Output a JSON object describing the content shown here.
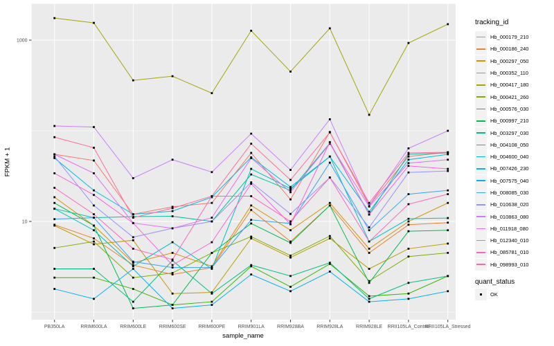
{
  "figure": {
    "background": "#FFFFFF",
    "panel_background": "#EBEBEB",
    "grid_color": "#FFFFFF",
    "tick_color": "#333333",
    "tick_label_color": "#4D4D4D",
    "text_color": "#000000",
    "point_color": "#000000",
    "legend_key_background": "#F2F2F2"
  },
  "chart_data": {
    "type": "line",
    "title": "",
    "xlabel": "sample_name",
    "ylabel": "FPKM + 1",
    "y_scale": "log10",
    "ylim": [
      0.82,
      2500
    ],
    "y_major_breaks": [
      1000,
      10
    ],
    "y_tick_labels": [
      "1000",
      "10"
    ],
    "y_minor_breaks": [
      100,
      1
    ],
    "grid": true,
    "legend_position": "right",
    "legend_title": "tracking_id",
    "legend2_title": "quant_status",
    "legend2_items": [
      "OK"
    ],
    "categories": [
      "PB350LA",
      "RRIM600LA",
      "RRIM600LE",
      "RRIM600SE",
      "RRIM600PE",
      "RRIM901LA",
      "RRIM928BA",
      "RRIM928LA",
      "RRIM928LE",
      "RRII105LA_Control",
      "RRII105LA_Stressed"
    ],
    "series": [
      {
        "name": "Hb_000179_210",
        "color": "#F8766D",
        "values": [
          55,
          47,
          12,
          14.5,
          16,
          57,
          17.5,
          97,
          15,
          52,
          58
        ]
      },
      {
        "name": "Hb_000186_240",
        "color": "#EA8331",
        "values": [
          9.2,
          6.5,
          3.3,
          2.6,
          3.1,
          13.4,
          6.0,
          15,
          4.5,
          9.2,
          9.7
        ]
      },
      {
        "name": "Hb_000297_050",
        "color": "#D89000",
        "values": [
          18.5,
          9,
          3.5,
          4.5,
          3.2,
          15,
          8,
          16,
          5,
          10,
          16
        ]
      },
      {
        "name": "Hb_000352_110",
        "color": "#C09B00",
        "values": [
          9.0,
          5.6,
          6.2,
          1.6,
          1.65,
          6.5,
          4.0,
          6.5,
          3.0,
          5.0,
          5.7
        ]
      },
      {
        "name": "Hb_000417_180",
        "color": "#A3A500",
        "values": [
          1750,
          1550,
          360,
          400,
          260,
          1270,
          450,
          1350,
          150,
          930,
          1500
        ]
      },
      {
        "name": "Hb_000421_260",
        "color": "#7CAE00",
        "values": [
          5.1,
          6.0,
          2.4,
          2.7,
          4.5,
          6.8,
          4.2,
          6.9,
          2.2,
          4.1,
          4.5
        ]
      },
      {
        "name": "Hb_000576_030",
        "color": "#39B600",
        "values": [
          2.4,
          2.4,
          1.8,
          1.2,
          1.3,
          3.2,
          1.9,
          3.4,
          1.5,
          1.6,
          2.5
        ]
      },
      {
        "name": "Hb_000997_210",
        "color": "#00BB4E",
        "values": [
          16,
          9,
          1.1,
          1.2,
          4.5,
          9.5,
          5.8,
          15,
          2.1,
          7.8,
          8.0
        ]
      },
      {
        "name": "Hb_003297_030",
        "color": "#00BF7D",
        "values": [
          3.0,
          3.0,
          1.3,
          3.7,
          1.6,
          3.3,
          2.5,
          3.5,
          1.4,
          2.1,
          2.5
        ]
      },
      {
        "name": "Hb_004108_050",
        "color": "#00C1A3",
        "values": [
          13.8,
          11,
          11.3,
          11.4,
          10,
          33,
          22,
          73,
          12,
          55,
          57
        ]
      },
      {
        "name": "Hb_004600_040",
        "color": "#00BFC4",
        "values": [
          13.8,
          8,
          3.2,
          5.9,
          3.0,
          38,
          23,
          52,
          6.0,
          10.7,
          10.9
        ]
      },
      {
        "name": "Hb_007426_230",
        "color": "#00BAE0",
        "values": [
          50,
          22,
          12,
          13,
          18.5,
          51,
          24,
          52,
          12.8,
          48,
          55
        ]
      },
      {
        "name": "Hb_007575_040",
        "color": "#00B0F6",
        "values": [
          1.8,
          1.4,
          3.0,
          1.1,
          1.2,
          2.6,
          1.7,
          2.8,
          1.3,
          1.4,
          1.7
        ]
      },
      {
        "name": "Hb_008085_030",
        "color": "#35A2FF",
        "values": [
          10.6,
          11,
          3.6,
          3.1,
          3.1,
          10.4,
          9.5,
          44.5,
          8.0,
          20,
          22
        ]
      },
      {
        "name": "Hb_010638_020",
        "color": "#9590FF",
        "values": [
          52,
          15,
          6.7,
          8.4,
          10,
          27,
          12.1,
          30.5,
          8.6,
          34.7,
          36
        ]
      },
      {
        "name": "Hb_010863_080",
        "color": "#C77CFF",
        "values": [
          113,
          110,
          30,
          48,
          35,
          93,
          37,
          134,
          15,
          64,
          100
        ]
      },
      {
        "name": "Hb_011918_080",
        "color": "#E76BF3",
        "values": [
          55,
          34,
          9.6,
          8.4,
          11,
          50,
          21,
          72,
          14.6,
          44,
          48
        ]
      },
      {
        "name": "Hb_012340_010",
        "color": "#FA62DB",
        "values": [
          34,
          19.6,
          9.6,
          3.3,
          5.9,
          26,
          9.3,
          75,
          11.9,
          41,
          38
        ]
      },
      {
        "name": "Hb_085781_010",
        "color": "#FF62BC",
        "values": [
          23.5,
          12,
          5.0,
          3.8,
          19,
          19,
          10,
          30.5,
          6.0,
          15.5,
          20
        ]
      },
      {
        "name": "Hb_098993_010",
        "color": "#FF6A98",
        "values": [
          85,
          65,
          11,
          14,
          19,
          72,
          28.7,
          96,
          16,
          57,
          58
        ]
      }
    ]
  }
}
